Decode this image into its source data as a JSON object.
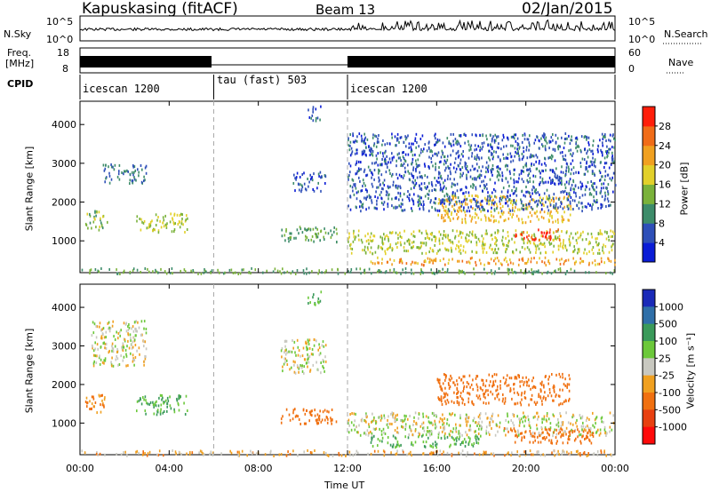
{
  "header": {
    "station": "Kapuskasing (fitACF)",
    "beam": "Beam 13",
    "date": "02/Jan/2015"
  },
  "noise_panel": {
    "left_label": "N.Sky",
    "right_label": "N.Search",
    "left_ticks": [
      "10^5",
      "10^0"
    ],
    "right_ticks": [
      "10^5",
      "10^0"
    ]
  },
  "freq_panel": {
    "left_label_line1": "Freq.",
    "left_label_line2": "[MHz]",
    "right_label": "Nave",
    "left_ticks": [
      "18",
      "8"
    ],
    "right_ticks": [
      "60",
      "0"
    ]
  },
  "cpid_panel": {
    "label": "CPID",
    "segments": [
      {
        "name": "icescan 1200",
        "start": 0,
        "end": 6
      },
      {
        "name": "tau (fast) 503",
        "start": 6,
        "end": 12
      },
      {
        "name": "icescan 1200",
        "start": 12,
        "end": 24
      }
    ]
  },
  "time_axis": {
    "label": "Time UT",
    "ticks": [
      "00:00",
      "04:00",
      "08:00",
      "12:00",
      "16:00",
      "20:00",
      "00:00"
    ],
    "range_hours": [
      0,
      24
    ]
  },
  "range_axis": {
    "label": "Slant Range [km]",
    "ticks": [
      "1000",
      "2000",
      "3000",
      "4000"
    ],
    "range_km": [
      180,
      4600
    ]
  },
  "power_colorbar": {
    "label": "Power [dB]",
    "ticks": [
      "4",
      "8",
      "12",
      "16",
      "20",
      "24",
      "28"
    ],
    "colors": [
      "#0a1cd6",
      "#2e4fb8",
      "#3d8c6a",
      "#7ab23a",
      "#e2d02a",
      "#f0a020",
      "#f06c18",
      "#ff1e0a"
    ]
  },
  "velocity_colorbar": {
    "label": "Velocity [m s⁻¹]",
    "ticks": [
      "1000",
      "500",
      "100",
      "25",
      "-25",
      "-100",
      "-500",
      "-1000"
    ],
    "colors": [
      "#1a2ab8",
      "#2f6fa8",
      "#3a9a5a",
      "#6cc83a",
      "#c8c8c0",
      "#f0a020",
      "#f07010",
      "#e84010",
      "#ff0a0a"
    ]
  },
  "chart_data": [
    {
      "type": "heatmap",
      "name": "power",
      "xlabel": "Time UT",
      "ylabel": "Slant Range [km]",
      "xlim": [
        0,
        24
      ],
      "ylim": [
        180,
        4600
      ],
      "clabel": "Power [dB]",
      "clim": [
        0,
        30
      ],
      "regions": [
        {
          "t0": 0.0,
          "t1": 24.0,
          "r0": 180,
          "r1": 320,
          "value": 12
        },
        {
          "t0": 0.2,
          "t1": 1.2,
          "r0": 1300,
          "r1": 1800,
          "value": 14
        },
        {
          "t0": 2.5,
          "t1": 4.8,
          "r0": 1250,
          "r1": 1750,
          "value": 16
        },
        {
          "t0": 1.0,
          "t1": 3.0,
          "r0": 2500,
          "r1": 3000,
          "value": 8
        },
        {
          "t0": 9.0,
          "t1": 11.5,
          "r0": 1000,
          "r1": 1400,
          "value": 12
        },
        {
          "t0": 9.5,
          "t1": 11.0,
          "r0": 2300,
          "r1": 2800,
          "value": 6
        },
        {
          "t0": 10.2,
          "t1": 10.8,
          "r0": 4100,
          "r1": 4500,
          "value": 6
        },
        {
          "t0": 12.0,
          "t1": 24.0,
          "r0": 700,
          "r1": 1300,
          "value": 16
        },
        {
          "t0": 13.0,
          "t1": 24.0,
          "r0": 400,
          "r1": 600,
          "value": 22
        },
        {
          "t0": 16.0,
          "t1": 22.0,
          "r0": 1500,
          "r1": 2200,
          "value": 20
        },
        {
          "t0": 19.5,
          "t1": 21.5,
          "r0": 1050,
          "r1": 1350,
          "value": 28
        },
        {
          "t0": 12.0,
          "t1": 24.0,
          "r0": 1800,
          "r1": 3800,
          "value": 6
        }
      ]
    },
    {
      "type": "heatmap",
      "name": "velocity",
      "xlabel": "Time UT",
      "ylabel": "Slant Range [km]",
      "xlim": [
        0,
        24
      ],
      "ylim": [
        180,
        4600
      ],
      "clabel": "Velocity [m s⁻¹]",
      "clim": [
        -1000,
        1000
      ],
      "regions": [
        {
          "t0": 0.0,
          "t1": 24.0,
          "r0": 180,
          "r1": 320,
          "value": -50
        },
        {
          "t0": 0.2,
          "t1": 1.2,
          "r0": 1300,
          "r1": 1800,
          "value": -100
        },
        {
          "t0": 2.5,
          "t1": 4.8,
          "r0": 1250,
          "r1": 1750,
          "value": 100
        },
        {
          "t0": 0.5,
          "t1": 3.0,
          "r0": 2500,
          "r1": 3700,
          "value": 0
        },
        {
          "t0": 9.0,
          "t1": 11.5,
          "r0": 1000,
          "r1": 1400,
          "value": -300
        },
        {
          "t0": 9.0,
          "t1": 11.0,
          "r0": 2300,
          "r1": 3200,
          "value": 0
        },
        {
          "t0": 10.2,
          "t1": 10.8,
          "r0": 4100,
          "r1": 4500,
          "value": 100
        },
        {
          "t0": 12.0,
          "t1": 24.0,
          "r0": 700,
          "r1": 1300,
          "value": 0
        },
        {
          "t0": 13.0,
          "t1": 18.0,
          "r0": 400,
          "r1": 700,
          "value": 100
        },
        {
          "t0": 16.0,
          "t1": 22.0,
          "r0": 1500,
          "r1": 2300,
          "value": -400
        },
        {
          "t0": 19.0,
          "t1": 23.0,
          "r0": 500,
          "r1": 900,
          "value": -200
        }
      ]
    }
  ]
}
